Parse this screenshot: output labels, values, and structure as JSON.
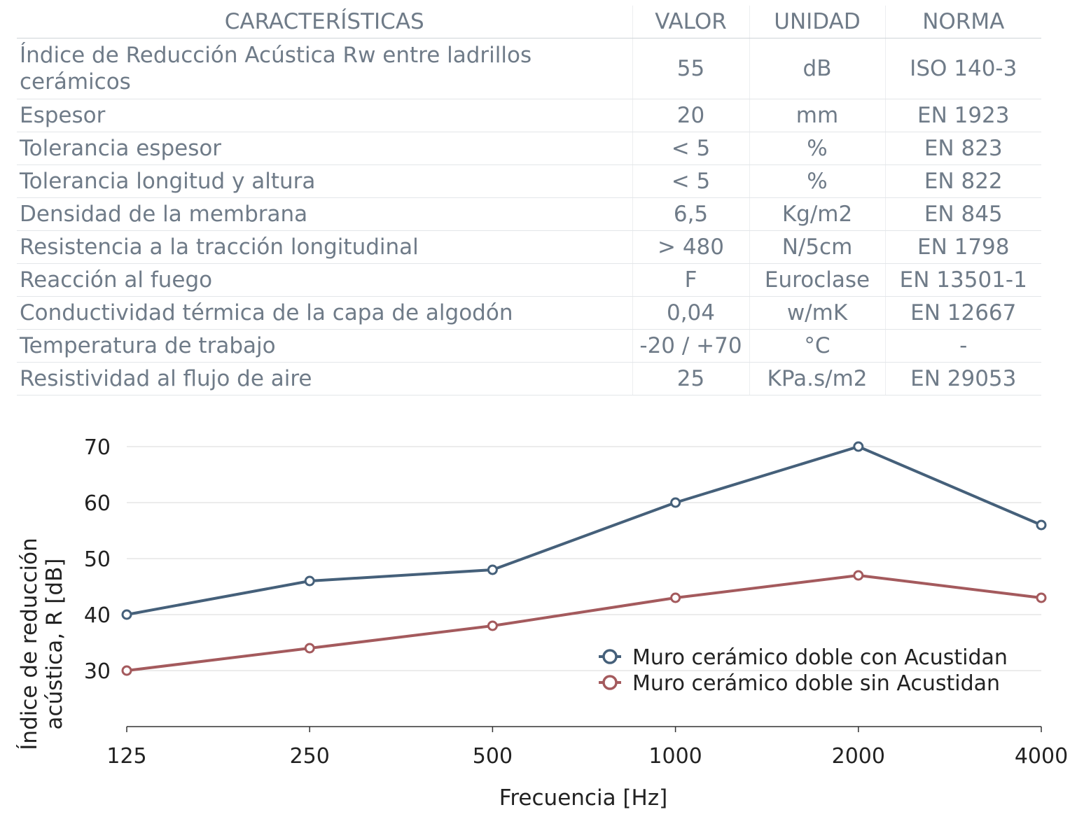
{
  "table": {
    "headers": [
      "CARACTERÍSTICAS",
      "VALOR",
      "UNIDAD",
      "NORMA"
    ],
    "rows": [
      {
        "characteristic": "Índice de Reducción Acústica Rw entre ladrillos cerámicos",
        "value": "55",
        "unit": "dB",
        "norm": "ISO 140-3"
      },
      {
        "characteristic": "Espesor",
        "value": "20",
        "unit": "mm",
        "norm": "EN 1923"
      },
      {
        "characteristic": "Tolerancia espesor",
        "value": "< 5",
        "unit": "%",
        "norm": "EN 823"
      },
      {
        "characteristic": "Tolerancia longitud y altura",
        "value": "< 5",
        "unit": "%",
        "norm": "EN 822"
      },
      {
        "characteristic": "Densidad de la membrana",
        "value": "6,5",
        "unit": "Kg/m2",
        "norm": "EN 845"
      },
      {
        "characteristic": "Resistencia a la tracción longitudinal",
        "value": "> 480",
        "unit": "N/5cm",
        "norm": "EN 1798"
      },
      {
        "characteristic": "Reacción al fuego",
        "value": "F",
        "unit": "Euroclase",
        "norm": "EN 13501-1"
      },
      {
        "characteristic": "Conductividad térmica de la capa de algodón",
        "value": "0,04",
        "unit": "w/mK",
        "norm": "EN 12667"
      },
      {
        "characteristic": "Temperatura de trabajo",
        "value": "-20 / +70",
        "unit": "°C",
        "norm": "-"
      },
      {
        "characteristic": "Resistividad al flujo de aire",
        "value": "25",
        "unit": "KPa.s/m2",
        "norm": "EN 29053"
      }
    ]
  },
  "chart_data": {
    "type": "line",
    "title": "",
    "xlabel": "Frecuencia [Hz]",
    "ylabel": "Índice de reducción acústica, R [dB]",
    "categories": [
      "125",
      "250",
      "500",
      "1000",
      "2000",
      "4000"
    ],
    "ylim": [
      20,
      70
    ],
    "yticks": [
      30,
      40,
      50,
      60,
      70
    ],
    "grid": true,
    "legend_position": "lower-right",
    "series": [
      {
        "name": "Muro cerámico doble con Acustidan",
        "color": "#45607a",
        "values": [
          40,
          46,
          48,
          60,
          70,
          56
        ]
      },
      {
        "name": "Muro cerámico doble sin Acustidan",
        "color": "#a45a5d",
        "values": [
          30,
          34,
          38,
          43,
          47,
          43
        ]
      }
    ]
  }
}
